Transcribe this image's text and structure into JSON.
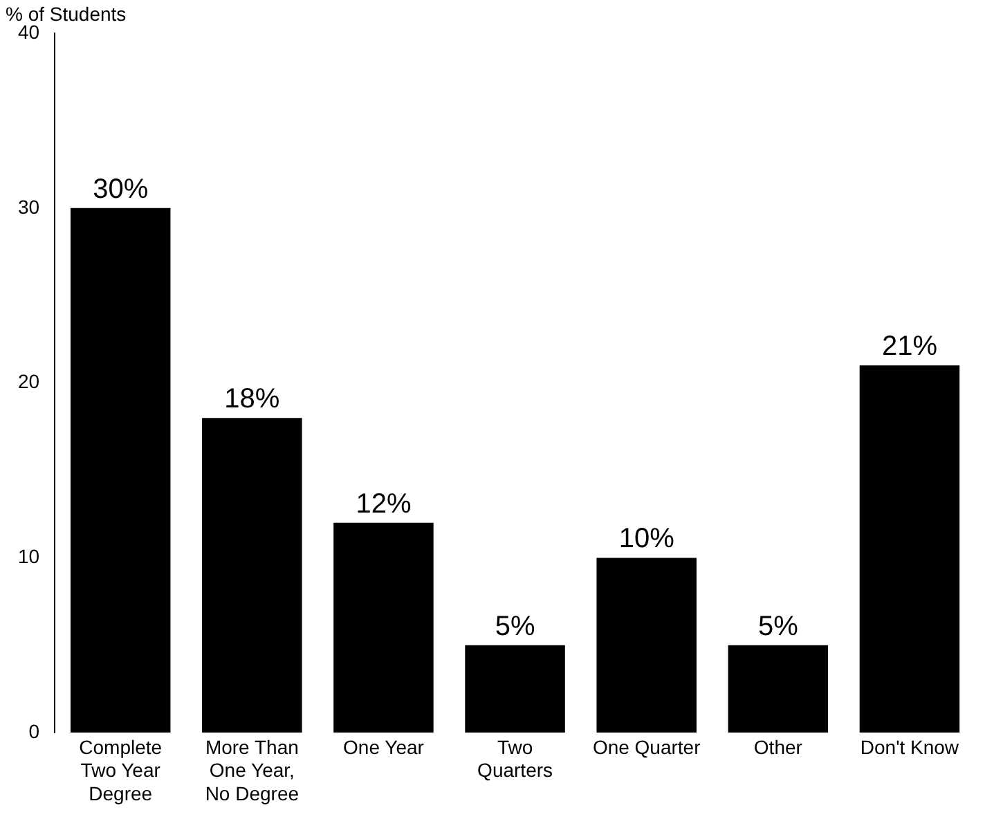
{
  "chart_data": {
    "type": "bar",
    "ylabel": "% of Students",
    "categories": [
      "Complete Two Year Degree",
      "More Than One Year, No Degree",
      "One Year",
      "Two Quarters",
      "One Quarter",
      "Other",
      "Don't Know"
    ],
    "values": [
      30,
      18,
      12,
      5,
      10,
      5,
      21
    ],
    "value_labels": [
      "30%",
      "18%",
      "12%",
      "5%",
      "10%",
      "5%",
      "21%"
    ],
    "color": "#000000",
    "ylim": [
      0,
      40
    ],
    "yticks": [
      0,
      10,
      20,
      30,
      40
    ],
    "grid": false,
    "legend": false
  }
}
